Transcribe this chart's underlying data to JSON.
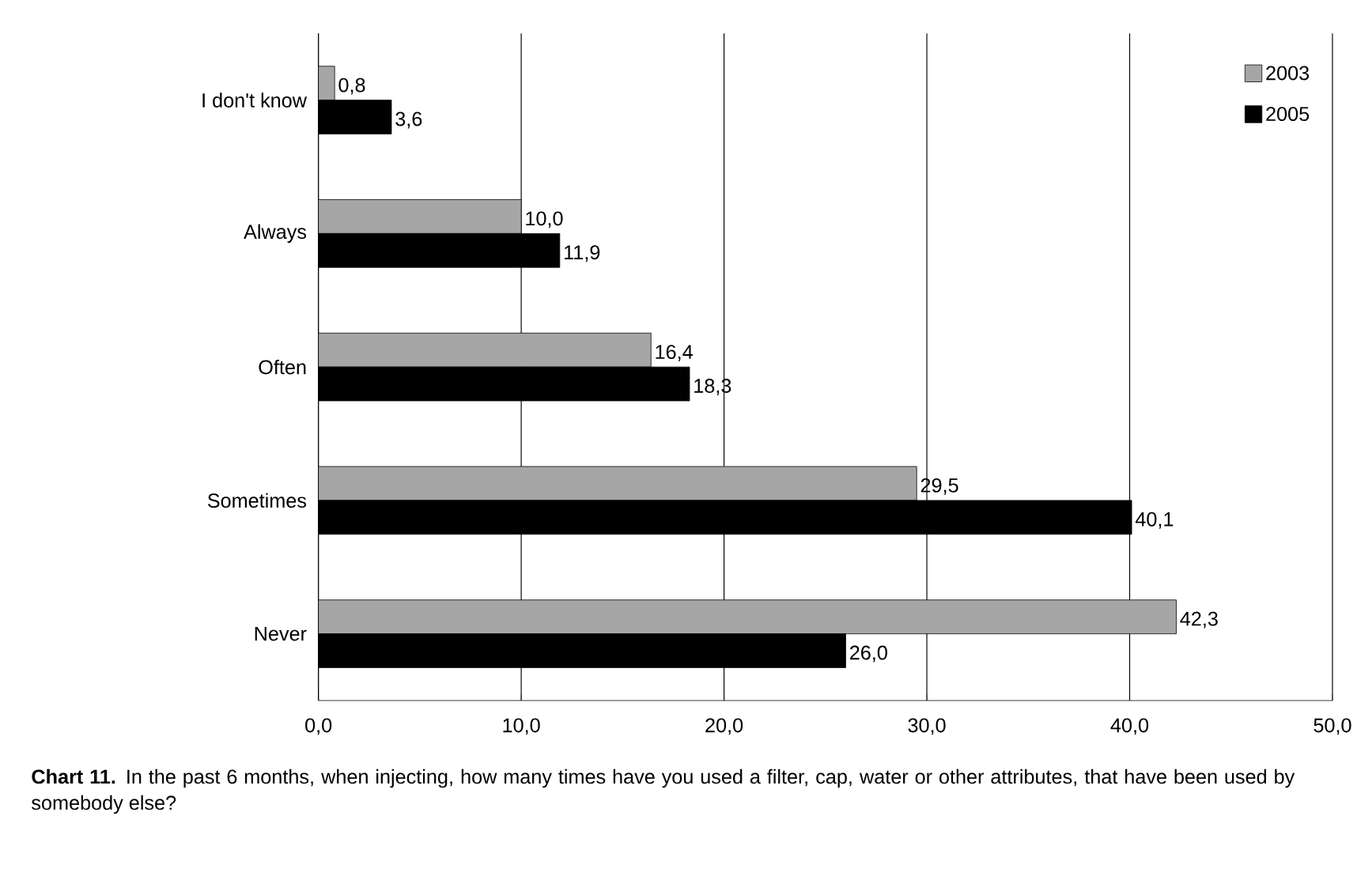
{
  "chart_data": {
    "type": "bar",
    "orientation": "horizontal",
    "categories": [
      "I don't know",
      "Always",
      "Often",
      "Sometimes",
      "Never"
    ],
    "series": [
      {
        "name": "2003",
        "color": "#a6a6a6",
        "values": [
          0.8,
          10.0,
          16.4,
          29.5,
          42.3
        ],
        "value_labels": [
          "0,8",
          "10,0",
          "16,4",
          "29,5",
          "42,3"
        ]
      },
      {
        "name": "2005",
        "color": "#000000",
        "values": [
          3.6,
          11.9,
          18.3,
          40.1,
          26.0
        ],
        "value_labels": [
          "3,6",
          "11,9",
          "18,3",
          "40,1",
          "26,0"
        ]
      }
    ],
    "xlim": [
      0,
      50
    ],
    "xticks": [
      {
        "value": 0,
        "label": "0,0"
      },
      {
        "value": 10,
        "label": "10,0"
      },
      {
        "value": 20,
        "label": "20,0"
      },
      {
        "value": 30,
        "label": "30,0"
      },
      {
        "value": 40,
        "label": "40,0"
      },
      {
        "value": 50,
        "label": "50,0"
      }
    ],
    "grid": "x",
    "legend": "top right",
    "annotations": [
      "**Chart 11.** In the past 6 months, when injecting, how many times have you used a filter, cap, water or other attributes, that have been used by somebody else?"
    ]
  }
}
